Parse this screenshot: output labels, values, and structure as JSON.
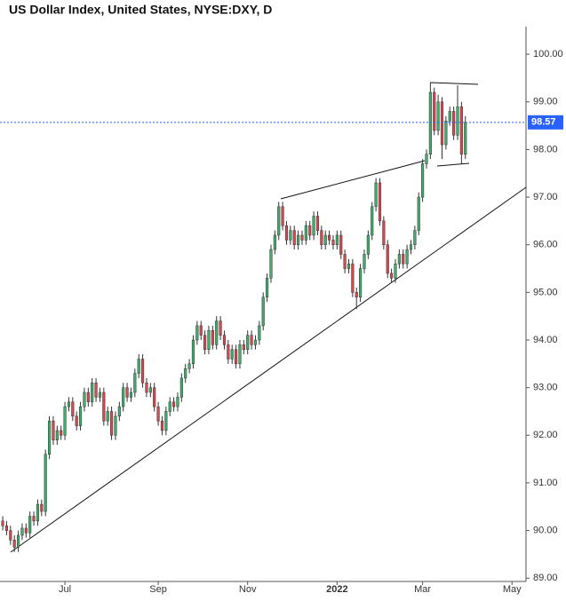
{
  "chart_data": {
    "type": "candlestick",
    "title": "US Dollar Index, United States, NYSE:DXY, D",
    "up_color": "#3fae6a",
    "down_color": "#d9474f",
    "categories": [
      null,
      null,
      null,
      null,
      null,
      null,
      null,
      null,
      null,
      null,
      null,
      null,
      null,
      null,
      null,
      null,
      null,
      null,
      null,
      null,
      null,
      null,
      null,
      null,
      null,
      null,
      null,
      null,
      null,
      null,
      null,
      null,
      null,
      null,
      null,
      null,
      null,
      null,
      null,
      null,
      null,
      null,
      null,
      null,
      null,
      null,
      null,
      null,
      null,
      null,
      null,
      null,
      null,
      null,
      null,
      null,
      null,
      null,
      null,
      null,
      null,
      null,
      null,
      null,
      null,
      null,
      null,
      null,
      null,
      null,
      null,
      null,
      null,
      null,
      null,
      null,
      null,
      null,
      null,
      null,
      null,
      null,
      null,
      null,
      null,
      null,
      null,
      null,
      null,
      null,
      null,
      null,
      null,
      null,
      null,
      null,
      null,
      null,
      null,
      null,
      null,
      null,
      null,
      null,
      null,
      null,
      null,
      null,
      null,
      null,
      null,
      null,
      null,
      null,
      null,
      null,
      null,
      null,
      null,
      null
    ],
    "open": [
      90.2,
      90.1,
      90.0,
      89.8,
      89.65,
      89.9,
      90.05,
      89.95,
      90.3,
      90.2,
      90.55,
      90.4,
      91.6,
      92.3,
      91.9,
      92.1,
      92.0,
      92.6,
      92.7,
      92.4,
      92.2,
      92.6,
      92.9,
      92.7,
      93.1,
      92.8,
      92.9,
      92.3,
      92.5,
      92.0,
      92.4,
      92.6,
      93.0,
      92.8,
      92.9,
      93.3,
      93.6,
      93.1,
      92.9,
      93.0,
      92.6,
      92.3,
      92.1,
      92.5,
      92.7,
      92.6,
      92.8,
      93.2,
      93.4,
      93.5,
      94.0,
      94.3,
      94.1,
      93.8,
      94.2,
      93.9,
      94.4,
      94.1,
      93.9,
      93.6,
      93.8,
      93.5,
      93.9,
      93.8,
      94.1,
      93.9,
      94.0,
      94.3,
      94.9,
      95.3,
      95.9,
      96.2,
      96.8,
      96.4,
      96.1,
      96.3,
      96.0,
      96.2,
      96.1,
      96.4,
      96.2,
      96.6,
      96.3,
      96.0,
      96.2,
      96.1,
      96.0,
      96.2,
      95.8,
      95.5,
      95.6,
      95.0,
      94.9,
      95.5,
      95.8,
      96.2,
      96.8,
      97.3,
      96.5,
      96.0,
      95.4,
      95.3,
      95.6,
      95.8,
      95.6,
      95.9,
      96.0,
      96.3,
      97.0,
      97.7,
      97.9,
      99.2,
      98.4,
      99.0,
      98.1,
      98.6,
      98.8,
      98.3,
      98.9,
      97.9
    ],
    "high": [
      90.3,
      90.2,
      90.1,
      89.9,
      90.0,
      90.15,
      90.15,
      90.4,
      90.4,
      90.65,
      90.65,
      91.7,
      92.4,
      92.4,
      92.2,
      92.2,
      92.7,
      92.8,
      92.8,
      92.5,
      92.7,
      93.0,
      93.0,
      93.2,
      93.2,
      93.0,
      93.0,
      92.6,
      92.6,
      92.5,
      92.7,
      93.1,
      93.1,
      93.0,
      93.4,
      93.7,
      93.7,
      93.2,
      93.1,
      93.1,
      92.7,
      92.4,
      92.6,
      92.8,
      92.8,
      92.9,
      93.3,
      93.5,
      93.6,
      94.1,
      94.4,
      94.4,
      94.2,
      94.3,
      94.3,
      94.5,
      94.5,
      94.2,
      94.0,
      93.9,
      93.9,
      94.0,
      94.0,
      94.2,
      94.2,
      94.1,
      94.4,
      95.0,
      95.4,
      96.0,
      96.3,
      96.9,
      96.9,
      96.5,
      96.4,
      96.4,
      96.3,
      96.3,
      96.5,
      96.5,
      96.7,
      96.7,
      96.4,
      96.3,
      96.3,
      96.2,
      96.3,
      96.3,
      95.9,
      95.7,
      95.7,
      95.1,
      95.6,
      95.9,
      96.3,
      96.9,
      97.4,
      97.4,
      96.6,
      96.1,
      95.5,
      95.7,
      95.9,
      95.9,
      96.0,
      96.1,
      96.4,
      97.1,
      97.8,
      98.0,
      99.4,
      99.3,
      99.15,
      99.1,
      98.7,
      98.9,
      98.9,
      99.35,
      99.0,
      98.7
    ],
    "low": [
      90.0,
      89.9,
      89.7,
      89.55,
      89.55,
      89.8,
      89.85,
      89.85,
      90.1,
      90.1,
      90.3,
      90.3,
      91.5,
      91.8,
      91.8,
      91.9,
      91.9,
      92.5,
      92.3,
      92.1,
      92.1,
      92.5,
      92.6,
      92.6,
      92.7,
      92.7,
      92.2,
      92.2,
      91.9,
      91.9,
      92.3,
      92.5,
      92.7,
      92.7,
      92.8,
      93.2,
      93.0,
      92.8,
      92.8,
      92.5,
      92.2,
      92.0,
      92.0,
      92.4,
      92.5,
      92.5,
      92.7,
      93.1,
      93.3,
      93.4,
      93.9,
      94.0,
      93.7,
      93.7,
      93.8,
      93.8,
      94.0,
      93.8,
      93.5,
      93.5,
      93.4,
      93.4,
      93.7,
      93.7,
      93.8,
      93.8,
      93.9,
      94.2,
      94.8,
      95.2,
      95.8,
      96.1,
      96.3,
      96.0,
      96.0,
      95.9,
      95.9,
      96.0,
      96.0,
      96.1,
      96.1,
      96.2,
      95.9,
      95.9,
      96.0,
      95.9,
      95.9,
      95.7,
      95.4,
      95.4,
      94.9,
      94.65,
      94.8,
      95.4,
      95.7,
      96.1,
      96.7,
      96.4,
      95.9,
      95.3,
      95.2,
      95.2,
      95.5,
      95.5,
      95.5,
      95.8,
      95.9,
      96.2,
      96.9,
      97.6,
      97.8,
      98.3,
      98.3,
      97.8,
      98.0,
      98.5,
      98.2,
      98.2,
      97.7,
      97.8
    ],
    "close": [
      90.1,
      90.0,
      89.8,
      89.65,
      89.9,
      90.05,
      89.95,
      90.3,
      90.2,
      90.55,
      90.4,
      91.6,
      92.3,
      91.9,
      92.1,
      92.0,
      92.6,
      92.7,
      92.4,
      92.2,
      92.6,
      92.9,
      92.7,
      93.1,
      92.8,
      92.9,
      92.3,
      92.5,
      92.0,
      92.4,
      92.6,
      93.0,
      92.8,
      92.9,
      93.3,
      93.6,
      93.1,
      92.9,
      93.0,
      92.6,
      92.3,
      92.1,
      92.5,
      92.7,
      92.6,
      92.8,
      93.2,
      93.4,
      93.5,
      94.0,
      94.3,
      94.1,
      93.8,
      94.2,
      93.9,
      94.4,
      94.1,
      93.9,
      93.6,
      93.8,
      93.5,
      93.9,
      93.8,
      94.1,
      93.9,
      94.0,
      94.3,
      94.9,
      95.3,
      95.9,
      96.2,
      96.8,
      96.4,
      96.1,
      96.3,
      96.0,
      96.2,
      96.1,
      96.4,
      96.2,
      96.6,
      96.3,
      96.0,
      96.2,
      96.1,
      96.0,
      96.2,
      95.8,
      95.5,
      95.6,
      95.0,
      94.9,
      95.5,
      95.8,
      96.2,
      96.8,
      97.3,
      96.5,
      96.0,
      95.4,
      95.3,
      95.6,
      95.8,
      95.6,
      95.9,
      96.0,
      96.3,
      97.0,
      97.7,
      97.9,
      99.2,
      98.4,
      99.0,
      98.1,
      98.6,
      98.8,
      98.3,
      98.9,
      97.9,
      98.57
    ],
    "last_price": 98.57,
    "last_price_color": "#2962ff",
    "xlim": [
      -0.7,
      134.6
    ],
    "xticks": [
      {
        "value": 16,
        "label": "Jul"
      },
      {
        "value": 40,
        "label": "Sep"
      },
      {
        "value": 63,
        "label": "Nov"
      },
      {
        "value": 86,
        "label": "2022"
      },
      {
        "value": 108,
        "label": "Mar"
      },
      {
        "value": 131,
        "label": "May"
      }
    ],
    "ylim": [
      88.93,
      100.58
    ],
    "yticks": [
      {
        "value": 89,
        "label": "89.00"
      },
      {
        "value": 90,
        "label": "90.00"
      },
      {
        "value": 91,
        "label": "91.00"
      },
      {
        "value": 92,
        "label": "92.00"
      },
      {
        "value": 93,
        "label": "93.00"
      },
      {
        "value": 94,
        "label": "94.00"
      },
      {
        "value": 95,
        "label": "95.00"
      },
      {
        "value": 96,
        "label": "96.00"
      },
      {
        "value": 97,
        "label": "97.00"
      },
      {
        "value": 98,
        "label": "98.00"
      },
      {
        "value": 99,
        "label": "99.00"
      },
      {
        "value": 100,
        "label": "100.00"
      }
    ]
  }
}
